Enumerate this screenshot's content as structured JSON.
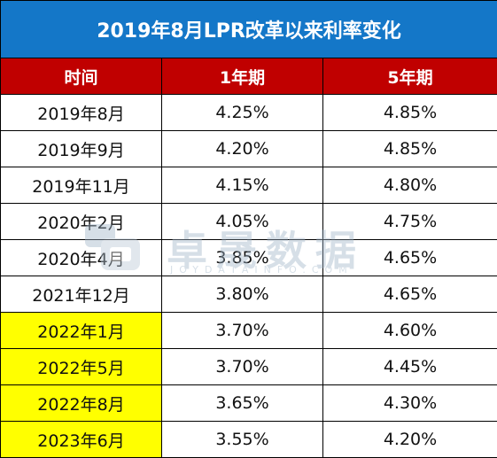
{
  "title": "2019年8月LPR改革以来利率变化",
  "headers": [
    "时间",
    "1年期",
    "5年期"
  ],
  "rows": [
    {
      "date": "2019年8月",
      "one_year": "4.25%",
      "five_year": "4.85%",
      "highlight": false
    },
    {
      "date": "2019年9月",
      "one_year": "4.20%",
      "five_year": "4.85%",
      "highlight": false
    },
    {
      "date": "2019年11月",
      "one_year": "4.15%",
      "five_year": "4.80%",
      "highlight": false
    },
    {
      "date": "2020年2月",
      "one_year": "4.05%",
      "five_year": "4.75%",
      "highlight": false
    },
    {
      "date": "2020年4月",
      "one_year": "3.85%",
      "five_year": "4.65%",
      "highlight": false
    },
    {
      "date": "2021年12月",
      "one_year": "3.80%",
      "five_year": "4.65%",
      "highlight": false
    },
    {
      "date": "2022年1月",
      "one_year": "3.70%",
      "five_year": "4.60%",
      "highlight": true
    },
    {
      "date": "2022年5月",
      "one_year": "3.70%",
      "five_year": "4.45%",
      "highlight": true
    },
    {
      "date": "2022年8月",
      "one_year": "3.65%",
      "five_year": "4.30%",
      "highlight": true
    },
    {
      "date": "2023年6月",
      "one_year": "3.55%",
      "five_year": "4.20%",
      "highlight": true
    }
  ],
  "watermark": {
    "name": "卓晟数据",
    "sub": "JOYDATAINFO.COM"
  },
  "colors": {
    "title_bg": "#1477c8",
    "header_bg": "#c00000",
    "highlight": "#ffff00"
  }
}
